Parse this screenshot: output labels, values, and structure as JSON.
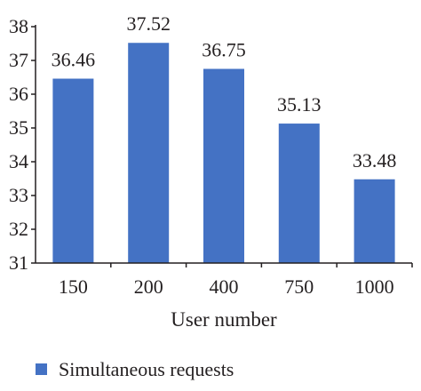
{
  "chart_data": {
    "type": "bar",
    "categories": [
      "150",
      "200",
      "400",
      "750",
      "1000"
    ],
    "series": [
      {
        "name": "Simultaneous requests",
        "values": [
          36.46,
          37.52,
          36.75,
          35.13,
          33.48
        ]
      }
    ],
    "data_labels": [
      "36.46",
      "37.52",
      "36.75",
      "35.13",
      "33.48"
    ],
    "title": "",
    "xlabel": "User number",
    "ylabel": "",
    "ylim": [
      31,
      38
    ],
    "yticks": [
      "31",
      "32",
      "33",
      "34",
      "35",
      "36",
      "37",
      "38"
    ],
    "grid": false,
    "legend_position": "bottom-left",
    "bar_color": "#4472c4",
    "axis_color": "#231f20"
  }
}
